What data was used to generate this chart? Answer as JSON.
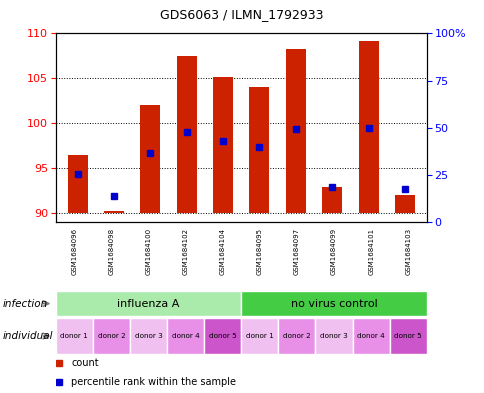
{
  "title": "GDS6063 / ILMN_1792933",
  "samples": [
    "GSM1684096",
    "GSM1684098",
    "GSM1684100",
    "GSM1684102",
    "GSM1684104",
    "GSM1684095",
    "GSM1684097",
    "GSM1684099",
    "GSM1684101",
    "GSM1684103"
  ],
  "bar_bottoms": [
    90,
    90,
    90,
    90,
    90,
    90,
    90,
    90,
    90,
    90
  ],
  "bar_tops": [
    96.5,
    90.2,
    102.0,
    107.5,
    105.2,
    104.0,
    108.3,
    92.9,
    109.2,
    92.0
  ],
  "bar_color": "#cc2200",
  "percentile_values": [
    94.4,
    91.9,
    96.7,
    99.0,
    98.0,
    97.4,
    99.4,
    92.9,
    99.5,
    92.7
  ],
  "percentile_color": "#0000cc",
  "ylim_left": [
    89,
    110
  ],
  "yticks_left": [
    90,
    95,
    100,
    105,
    110
  ],
  "ylim_right": [
    0,
    100
  ],
  "yticks_right": [
    0,
    25,
    50,
    75,
    100
  ],
  "ytick_labels_right": [
    "0",
    "25",
    "50",
    "75",
    "100%"
  ],
  "infection_groups": [
    {
      "label": "influenza A",
      "span": [
        0,
        5
      ],
      "color": "#aaeaaa"
    },
    {
      "label": "no virus control",
      "span": [
        5,
        10
      ],
      "color": "#44cc44"
    }
  ],
  "individual_labels": [
    "donor 1",
    "donor 2",
    "donor 3",
    "donor 4",
    "donor 5",
    "donor 1",
    "donor 2",
    "donor 3",
    "donor 4",
    "donor 5"
  ],
  "individual_colors_alt": [
    "#f0c0f0",
    "#e890e8",
    "#f0c0f0",
    "#e890e8",
    "#cc55cc",
    "#f0c0f0",
    "#e890e8",
    "#f0c0f0",
    "#e890e8",
    "#cc55cc"
  ],
  "sample_gray_even": "#d0d0d0",
  "sample_gray_odd": "#b8b8b8",
  "legend_count_color": "#cc2200",
  "legend_percentile_color": "#0000cc",
  "row_label_infection": "infection",
  "row_label_individual": "individual",
  "background_color": "#ffffff",
  "title_fontsize": 9
}
